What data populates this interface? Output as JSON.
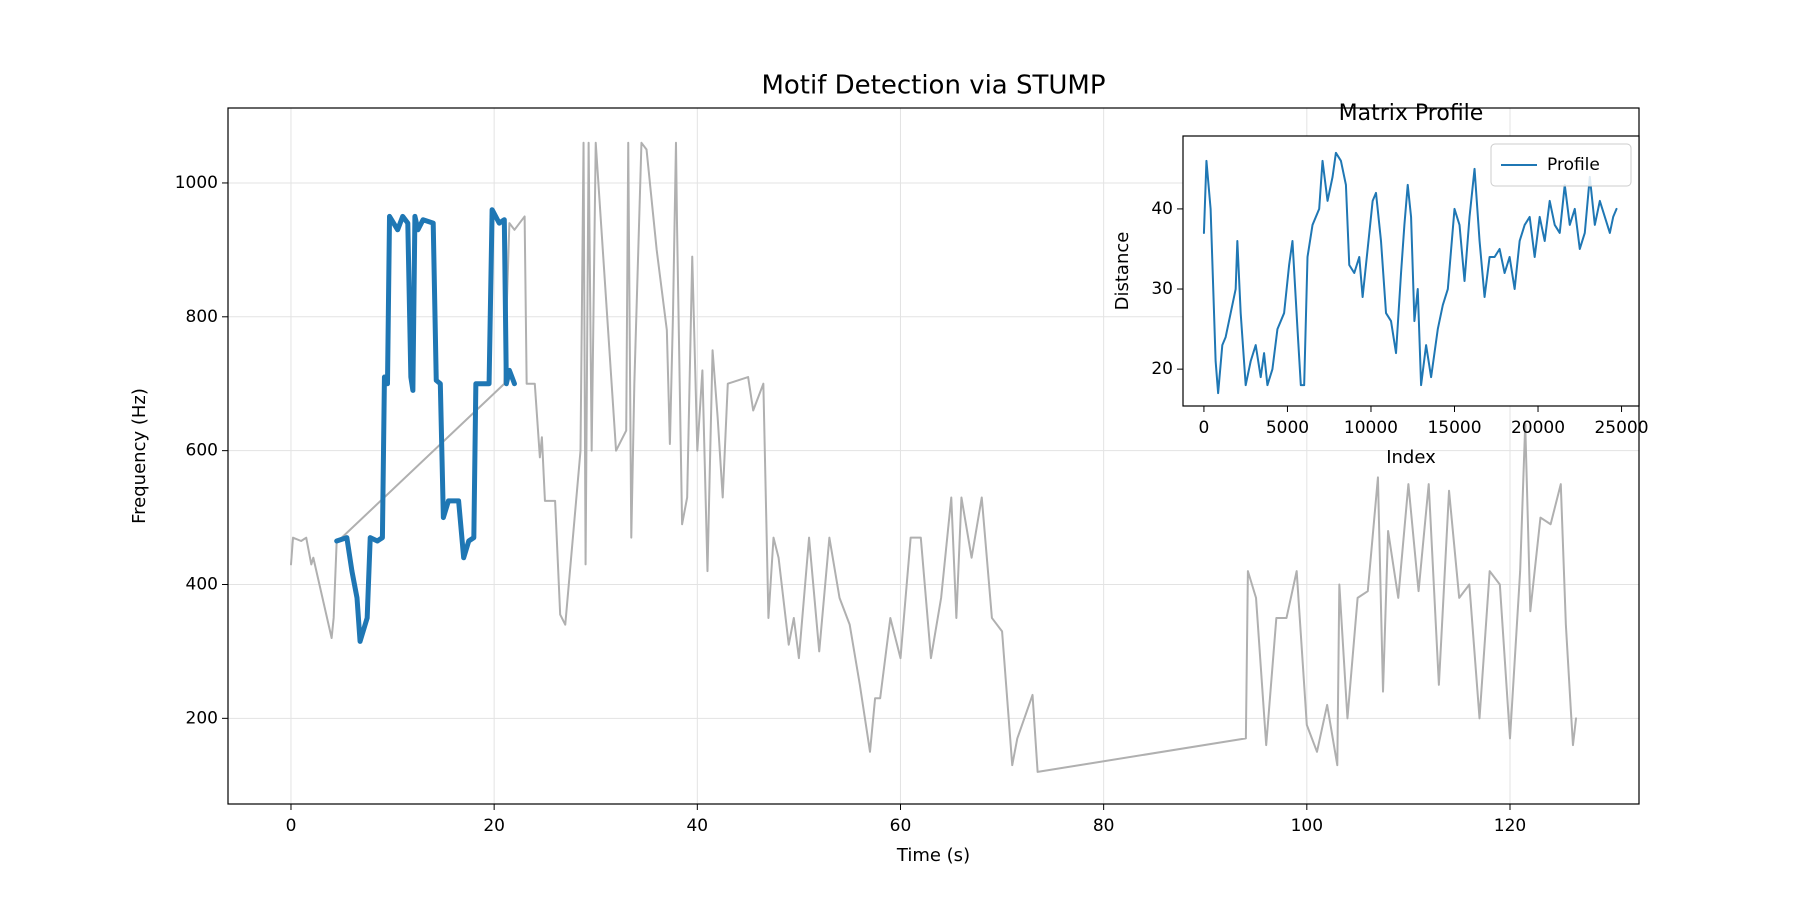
{
  "chart_data": [
    {
      "type": "line",
      "title": "Motif Detection via STUMP",
      "x_label": "Time (s)",
      "y_label": "Frequency (Hz)",
      "xlim": [
        -6.2,
        132.7
      ],
      "ylim": [
        72,
        1112
      ],
      "xticks": [
        0,
        20,
        40,
        60,
        80,
        100,
        120
      ],
      "yticks": [
        200,
        400,
        600,
        800,
        1000
      ],
      "grid": true,
      "series": [
        {
          "color": "#b0b0b0",
          "line_width": 2,
          "x": [
            0,
            0.2,
            1,
            1.5,
            2,
            2.2,
            4,
            4.2,
            4.5,
            5,
            21,
            21.5,
            22,
            23,
            23.2,
            24,
            24.5,
            24.7,
            25,
            26,
            26.5,
            27,
            28.5,
            28.8,
            29,
            29.3,
            29.6,
            30,
            32,
            33,
            33.2,
            33.5,
            33.8,
            34.5,
            35,
            36,
            37,
            37.3,
            37.6,
            37.9,
            38,
            38.5,
            39,
            39.5,
            40,
            40.5,
            41,
            41.5,
            42,
            42.5,
            43,
            45,
            45.5,
            46.5,
            47,
            47.5,
            48,
            49,
            49.5,
            50,
            51,
            52,
            53,
            54,
            55,
            56,
            57,
            57.5,
            58,
            59,
            60,
            61,
            62,
            63,
            64,
            65,
            65.5,
            66,
            67,
            68,
            69,
            70,
            71,
            71.5,
            73,
            73.5,
            94,
            94.2,
            95,
            96,
            97,
            98,
            99,
            100,
            101,
            102,
            103,
            103.2,
            104,
            105,
            106,
            107,
            107.5,
            108,
            109,
            110,
            111,
            112,
            113,
            114,
            115,
            116,
            117,
            118,
            119,
            120,
            121,
            121.5,
            122,
            123,
            124,
            125,
            125.5,
            126,
            126.2,
            126.5
          ],
          "values": [
            430,
            470,
            465,
            470,
            430,
            440,
            320,
            350,
            465,
            470,
            700,
            940,
            930,
            950,
            700,
            700,
            590,
            620,
            525,
            525,
            355,
            340,
            600,
            1060,
            430,
            1060,
            600,
            1060,
            600,
            630,
            1060,
            470,
            700,
            1060,
            1050,
            900,
            780,
            610,
            800,
            1060,
            940,
            490,
            530,
            890,
            600,
            720,
            420,
            750,
            650,
            530,
            700,
            710,
            660,
            700,
            350,
            470,
            440,
            310,
            350,
            290,
            470,
            300,
            470,
            380,
            340,
            250,
            150,
            230,
            230,
            350,
            290,
            470,
            470,
            290,
            380,
            530,
            350,
            530,
            440,
            530,
            350,
            330,
            130,
            170,
            235,
            120,
            170,
            420,
            380,
            160,
            350,
            350,
            420,
            190,
            150,
            220,
            130,
            400,
            200,
            380,
            390,
            560,
            240,
            480,
            380,
            550,
            390,
            550,
            250,
            540,
            380,
            400,
            200,
            420,
            400,
            170,
            420,
            640,
            360,
            500,
            490,
            550,
            340,
            210,
            160,
            200
          ]
        },
        {
          "color": "#1f77b4",
          "line_width": 5,
          "x": [
            4.5,
            5.5,
            6,
            6.5,
            6.8,
            7.5,
            7.8,
            8.5,
            9,
            9.2,
            9.5,
            9.7,
            10.5,
            11,
            11.5,
            11.8,
            12,
            12.2,
            12.5,
            13,
            14,
            14.3,
            14.7,
            15,
            15.5,
            16.5,
            17,
            17.5,
            18,
            18.2,
            19.5,
            19.8,
            20.5,
            21,
            21.2,
            21.5,
            22
          ],
          "values": [
            465,
            470,
            420,
            380,
            315,
            350,
            470,
            465,
            470,
            710,
            700,
            950,
            930,
            950,
            940,
            710,
            690,
            950,
            930,
            945,
            940,
            705,
            700,
            500,
            525,
            525,
            440,
            465,
            470,
            700,
            700,
            960,
            940,
            945,
            700,
            720,
            700
          ]
        }
      ]
    },
    {
      "type": "line",
      "title": "Matrix Profile",
      "x_label": "Index",
      "y_label": "Distance",
      "xlim": [
        -1253,
        26045
      ],
      "ylim": [
        15.4,
        49.1
      ],
      "xticks": [
        0,
        5000,
        10000,
        15000,
        20000,
        25000
      ],
      "yticks": [
        20,
        30,
        40
      ],
      "grid": false,
      "legend": "upper right",
      "series": [
        {
          "name": "Profile",
          "color": "#1f77b4",
          "line_width": 2,
          "x": [
            0,
            150,
            400,
            700,
            850,
            1100,
            1300,
            1600,
            1900,
            2000,
            2200,
            2500,
            2800,
            3100,
            3400,
            3600,
            3800,
            4100,
            4400,
            4800,
            5100,
            5300,
            5600,
            5800,
            6000,
            6200,
            6500,
            6900,
            7100,
            7400,
            7700,
            7900,
            8200,
            8500,
            8700,
            9000,
            9300,
            9500,
            9800,
            10100,
            10300,
            10600,
            10900,
            11200,
            11500,
            11800,
            12000,
            12200,
            12400,
            12600,
            12800,
            13000,
            13300,
            13600,
            14000,
            14300,
            14600,
            14800,
            15000,
            15300,
            15600,
            15900,
            16200,
            16500,
            16800,
            17100,
            17400,
            17700,
            18000,
            18300,
            18600,
            18900,
            19200,
            19500,
            19800,
            20100,
            20400,
            20700,
            21000,
            21300,
            21600,
            21900,
            22200,
            22500,
            22800,
            23100,
            23400,
            23700,
            24000,
            24300,
            24500,
            24700
          ],
          "values": [
            37,
            46,
            40,
            21,
            17,
            23,
            24,
            27,
            30,
            36,
            27,
            18,
            21,
            23,
            19,
            22,
            18,
            20,
            25,
            27,
            33,
            36,
            25,
            18,
            18,
            34,
            38,
            40,
            46,
            41,
            44,
            47,
            46,
            43,
            33,
            32,
            34,
            29,
            35,
            41,
            42,
            36,
            27,
            26,
            22,
            32,
            38,
            43,
            39,
            26,
            30,
            18,
            23,
            19,
            25,
            28,
            30,
            35,
            40,
            38,
            31,
            39,
            45,
            36,
            29,
            34,
            34,
            35,
            32,
            34,
            30,
            36,
            38,
            39,
            34,
            39,
            36,
            41,
            38,
            37,
            43,
            38,
            40,
            35,
            37,
            44,
            38,
            41,
            39,
            37,
            39,
            40
          ]
        }
      ]
    }
  ]
}
